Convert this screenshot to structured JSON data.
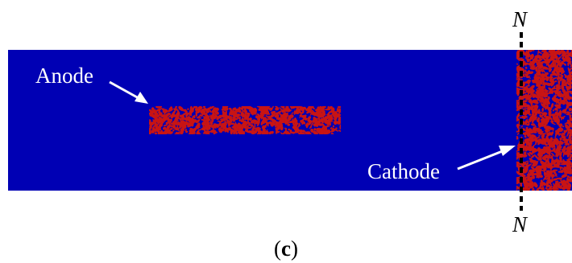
{
  "figure": {
    "anode_label": "Anode",
    "cathode_label": "Cathode",
    "section_top_label": "N",
    "section_bottom_label": "N",
    "caption_open": "(",
    "caption_letter": "c",
    "caption_close": ")"
  },
  "colors": {
    "domain": "#0000b4",
    "particles": "#c81414",
    "arrow": "#ffffff",
    "section_line": "#000000"
  }
}
